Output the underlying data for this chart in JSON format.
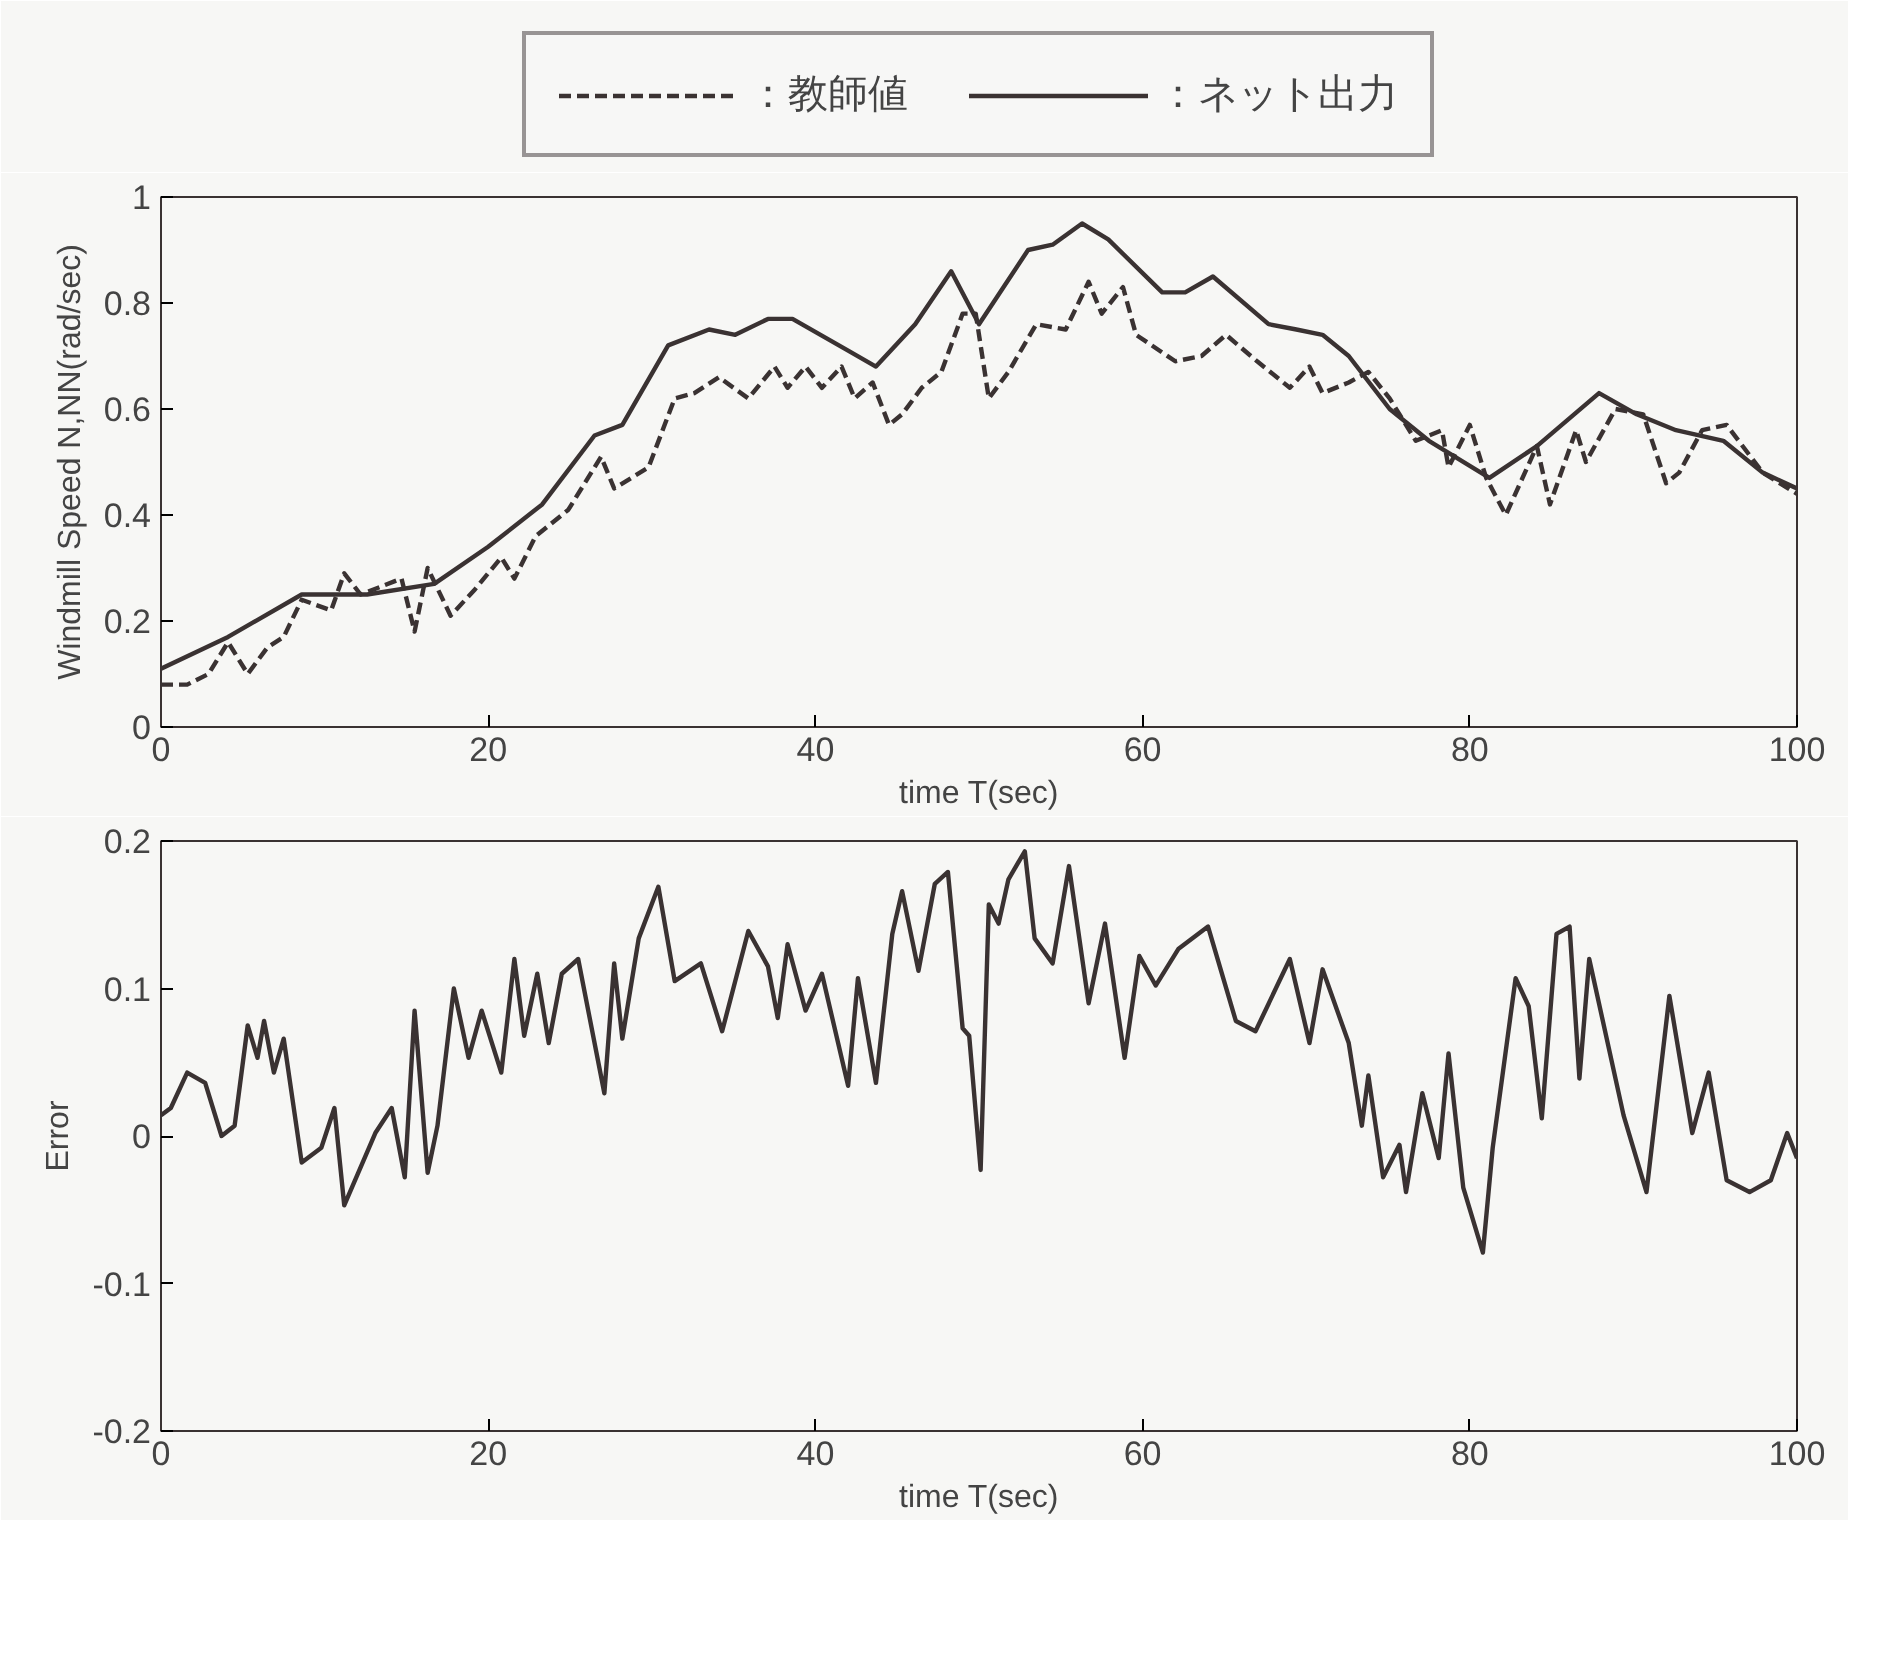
{
  "chart_data": [
    {
      "type": "line",
      "xlabel": "time T(sec)",
      "ylabel": "Windmill Speed N,NN(rad/sec)",
      "xlim": [
        0,
        100
      ],
      "xticks": [
        0,
        20,
        40,
        60,
        80,
        100
      ],
      "ylim": [
        0,
        1
      ],
      "yticks": [
        0,
        0.2,
        0.4,
        0.6,
        0.8,
        1
      ],
      "grid": false,
      "legend": "top",
      "series": [
        {
          "name": "：教師値",
          "color": "#3a3232",
          "line_style": "dashed",
          "x": [
            0,
            1.6,
            2.9,
            4.1,
            5.3,
            6.5,
            7.5,
            8.6,
            10.4,
            11.2,
            12.2,
            14.7,
            15.5,
            16.3,
            17.7,
            19.2,
            20.8,
            21.6,
            22.9,
            23.7,
            24.9,
            26.9,
            27.7,
            29.8,
            31.4,
            32.6,
            34.1,
            35.9,
            37.5,
            38.3,
            39.4,
            40.4,
            41.6,
            42.4,
            43.5,
            44.5,
            45.3,
            46.5,
            47.7,
            49.0,
            49.8,
            50.6,
            51.8,
            53.5,
            55.3,
            56.7,
            57.5,
            58.8,
            59.6,
            62.0,
            63.6,
            65.1,
            67.0,
            69.0,
            70.2,
            71.0,
            72.6,
            73.8,
            75.1,
            76.7,
            78.3,
            78.7,
            80.0,
            81.0,
            82.2,
            84.1,
            84.9,
            86.5,
            87.1,
            88.9,
            90.6,
            92.0,
            92.8,
            94.2,
            95.7,
            97.9,
            100
          ],
          "values": [
            0.08,
            0.08,
            0.1,
            0.16,
            0.1,
            0.15,
            0.17,
            0.24,
            0.22,
            0.29,
            0.25,
            0.28,
            0.18,
            0.3,
            0.21,
            0.26,
            0.32,
            0.28,
            0.36,
            0.38,
            0.41,
            0.51,
            0.45,
            0.49,
            0.62,
            0.63,
            0.66,
            0.62,
            0.68,
            0.64,
            0.68,
            0.64,
            0.68,
            0.62,
            0.65,
            0.57,
            0.59,
            0.64,
            0.67,
            0.78,
            0.78,
            0.62,
            0.67,
            0.76,
            0.75,
            0.84,
            0.78,
            0.83,
            0.74,
            0.69,
            0.7,
            0.74,
            0.69,
            0.64,
            0.68,
            0.63,
            0.65,
            0.67,
            0.62,
            0.54,
            0.56,
            0.49,
            0.57,
            0.47,
            0.4,
            0.53,
            0.42,
            0.56,
            0.5,
            0.6,
            0.59,
            0.46,
            0.48,
            0.56,
            0.57,
            0.48,
            0.44
          ]
        },
        {
          "name": "：ネット出力",
          "color": "#3a3232",
          "line_style": "solid",
          "x": [
            0,
            4.1,
            8.6,
            10.6,
            12.6,
            16.7,
            20.0,
            23.3,
            26.5,
            28.2,
            31.0,
            33.5,
            35.1,
            37.1,
            38.6,
            42.0,
            43.7,
            46.1,
            48.3,
            50.0,
            53.0,
            54.5,
            56.3,
            57.9,
            61.2,
            62.6,
            64.3,
            67.7,
            69.4,
            71.0,
            72.6,
            75.1,
            77.5,
            81.2,
            84.1,
            87.9,
            90.2,
            92.6,
            95.5,
            97.9,
            100
          ],
          "values": [
            0.11,
            0.17,
            0.25,
            0.25,
            0.25,
            0.27,
            0.34,
            0.42,
            0.55,
            0.57,
            0.72,
            0.75,
            0.74,
            0.77,
            0.77,
            0.71,
            0.68,
            0.76,
            0.86,
            0.76,
            0.9,
            0.91,
            0.95,
            0.92,
            0.82,
            0.82,
            0.85,
            0.76,
            0.75,
            0.74,
            0.7,
            0.6,
            0.54,
            0.47,
            0.53,
            0.63,
            0.59,
            0.56,
            0.54,
            0.48,
            0.45
          ]
        }
      ]
    },
    {
      "type": "line",
      "xlabel": "time T(sec)",
      "ylabel": "Error",
      "xlim": [
        0,
        100
      ],
      "xticks": [
        0,
        20,
        40,
        60,
        80,
        100
      ],
      "ylim": [
        -0.2,
        0.2
      ],
      "yticks": [
        -0.2,
        -0.1,
        0,
        0.1,
        0.2
      ],
      "grid": false,
      "series": [
        {
          "color": "#3a3232",
          "line_style": "solid",
          "x": [
            0,
            0.6,
            1.6,
            2.7,
            3.7,
            4.5,
            5.3,
            5.9,
            6.3,
            6.9,
            7.5,
            8.6,
            9.8,
            10.6,
            11.2,
            13.1,
            14.1,
            14.9,
            15.5,
            16.3,
            16.9,
            17.9,
            18.8,
            19.6,
            20.8,
            21.6,
            22.2,
            23.0,
            23.7,
            24.5,
            25.5,
            27.1,
            27.7,
            28.2,
            29.2,
            30.4,
            31.4,
            33.0,
            34.3,
            35.9,
            37.1,
            37.7,
            38.3,
            39.4,
            40.4,
            42.0,
            42.6,
            43.7,
            44.7,
            45.3,
            46.3,
            47.3,
            48.1,
            49.0,
            49.4,
            50.1,
            50.6,
            51.2,
            51.8,
            52.8,
            53.4,
            54.5,
            55.5,
            56.7,
            57.7,
            58.9,
            59.8,
            60.8,
            62.2,
            64.0,
            65.7,
            66.9,
            69.0,
            70.2,
            71.0,
            72.6,
            73.4,
            73.8,
            74.7,
            75.7,
            76.1,
            77.1,
            78.1,
            78.7,
            79.6,
            80.8,
            81.4,
            82.8,
            83.6,
            84.4,
            85.3,
            86.1,
            86.7,
            87.3,
            89.4,
            90.8,
            92.2,
            93.6,
            94.6,
            95.7,
            97.1,
            98.4,
            99.4,
            100
          ],
          "values": [
            0.014,
            0.019,
            0.043,
            0.036,
            0,
            0.007,
            0.075,
            0.053,
            0.078,
            0.043,
            0.066,
            -0.018,
            -0.008,
            0.019,
            -0.047,
            0.002,
            0.019,
            -0.028,
            0.085,
            -0.025,
            0.007,
            0.1,
            0.053,
            0.085,
            0.043,
            0.12,
            0.068,
            0.11,
            0.063,
            0.11,
            0.12,
            0.029,
            0.117,
            0.066,
            0.134,
            0.169,
            0.105,
            0.117,
            0.071,
            0.139,
            0.115,
            0.08,
            0.13,
            0.085,
            0.11,
            0.034,
            0.107,
            0.036,
            0.137,
            0.166,
            0.112,
            0.171,
            0.179,
            0.073,
            0.068,
            -0.023,
            0.157,
            0.144,
            0.174,
            0.193,
            0.134,
            0.117,
            0.183,
            0.09,
            0.144,
            0.053,
            0.122,
            0.102,
            0.127,
            0.142,
            0.078,
            0.071,
            0.12,
            0.063,
            0.113,
            0.063,
            0.007,
            0.041,
            -0.028,
            -0.006,
            -0.038,
            0.029,
            -0.015,
            0.056,
            -0.035,
            -0.079,
            -0.008,
            0.107,
            0.088,
            0.012,
            0.137,
            0.142,
            0.039,
            0.12,
            0.014,
            -0.038,
            0.095,
            0.002,
            0.043,
            -0.03,
            -0.038,
            -0.03,
            0.002,
            -0.015
          ]
        }
      ]
    }
  ]
}
